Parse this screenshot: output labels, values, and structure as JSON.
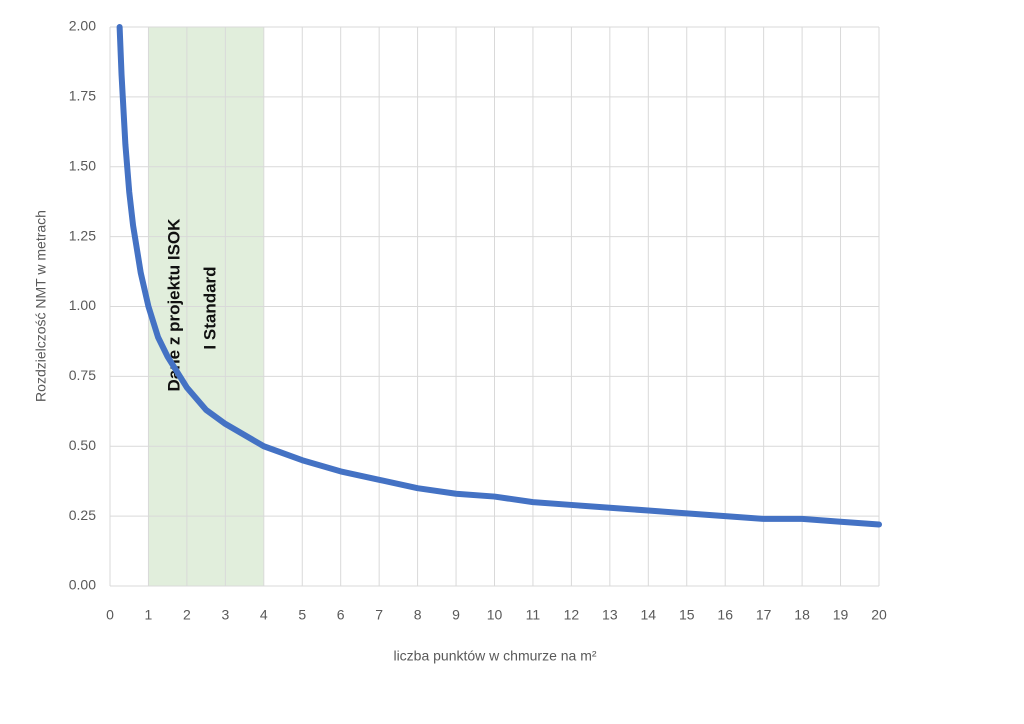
{
  "chart_data": {
    "type": "line",
    "x_label": "liczba punktów w chmurze na m²",
    "y_label": "Rozdzielczość NMT w metrach",
    "annotation": [
      "Dane z projektu ISOK",
      "I Standard"
    ],
    "shaded_range": [
      1,
      4
    ],
    "shaded_color": "#d9ead3",
    "xlim": [
      0,
      20
    ],
    "xticks": [
      0,
      1,
      2,
      3,
      4,
      5,
      6,
      7,
      8,
      9,
      10,
      11,
      12,
      13,
      14,
      15,
      16,
      17,
      18,
      19,
      20
    ],
    "ylim": [
      0,
      2
    ],
    "yticks": [
      {
        "value": 0,
        "label": "0.00"
      },
      {
        "value": 0.25,
        "label": "0.25"
      },
      {
        "value": 0.5,
        "label": "0.50"
      },
      {
        "value": 0.75,
        "label": "0.75"
      },
      {
        "value": 1,
        "label": "1.00"
      },
      {
        "value": 1.25,
        "label": "1.25"
      },
      {
        "value": 1.5,
        "label": "1.50"
      },
      {
        "value": 1.75,
        "label": "1.75"
      },
      {
        "value": 2,
        "label": "2.00"
      }
    ],
    "grid": true,
    "series": [
      {
        "color": "#4472c4",
        "x": [
          0.25,
          0.3,
          0.4,
          0.5,
          0.6,
          0.8,
          1,
          1.25,
          1.5,
          2,
          2.5,
          3,
          4,
          5,
          6,
          7,
          8,
          9,
          10,
          11,
          12,
          13,
          14,
          15,
          16,
          17,
          18,
          19,
          20
        ],
        "values": [
          2,
          1.83,
          1.58,
          1.41,
          1.29,
          1.12,
          1,
          0.89,
          0.82,
          0.71,
          0.63,
          0.58,
          0.5,
          0.45,
          0.41,
          0.38,
          0.35,
          0.33,
          0.32,
          0.3,
          0.29,
          0.28,
          0.27,
          0.26,
          0.25,
          0.24,
          0.24,
          0.23,
          0.22
        ]
      }
    ]
  }
}
